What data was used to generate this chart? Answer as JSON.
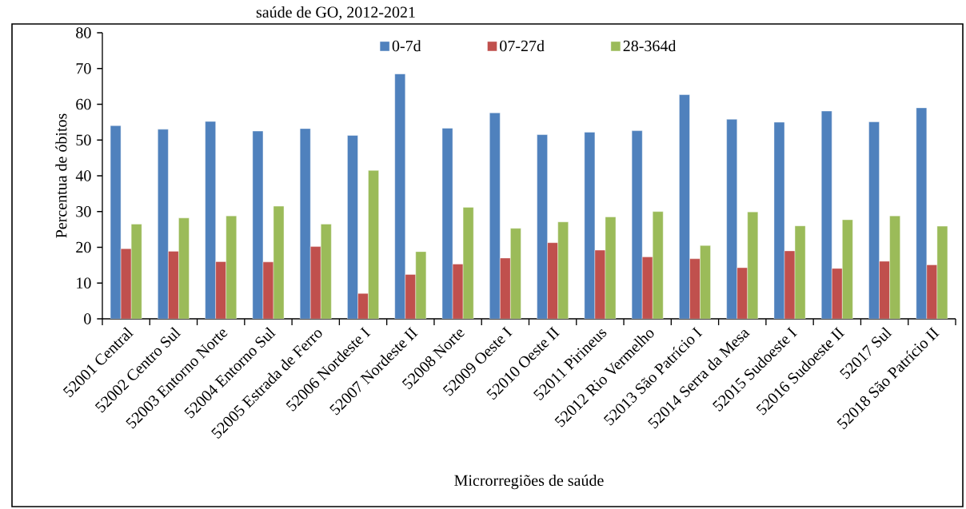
{
  "chart_data": {
    "type": "bar",
    "title": "saúde de GO, 2012-2021",
    "xlabel": "Microrregiões de saúde",
    "ylabel": "Percentua de óbitos",
    "categories": [
      "52001 Central",
      "52002 Centro Sul",
      "52003 Entorno Norte",
      "52004 Entorno Sul",
      "52005 Estrada de Ferro",
      "52006 Nordeste I",
      "52007 Nordeste II",
      "52008 Norte",
      "52009 Oeste I",
      "52010 Oeste II",
      "52011 Pirineus",
      "52012 Rio Vermelho",
      "52013 São Patrício I",
      "52014 Serra da Mesa",
      "52015 Sudoeste I",
      "52016 Sudoeste II",
      "52017 Sul",
      "52018 São Patrício II"
    ],
    "series": [
      {
        "name": "0-7d",
        "color": "#4f81bd",
        "values": [
          54.0,
          53.0,
          55.2,
          52.5,
          53.2,
          51.3,
          68.5,
          53.3,
          57.6,
          51.5,
          52.2,
          52.6,
          62.7,
          55.8,
          55.0,
          58.1,
          55.1,
          59.0
        ]
      },
      {
        "name": "07-27d",
        "color": "#c0504d",
        "values": [
          19.6,
          18.9,
          16.0,
          15.9,
          20.2,
          7.1,
          12.4,
          15.3,
          17.0,
          21.3,
          19.2,
          17.3,
          16.8,
          14.3,
          19.0,
          14.1,
          16.1,
          15.1
        ]
      },
      {
        "name": "28-364d",
        "color": "#9bbb59",
        "values": [
          26.5,
          28.2,
          28.8,
          31.5,
          26.5,
          41.5,
          18.8,
          31.2,
          25.3,
          27.1,
          28.5,
          30.0,
          20.5,
          29.9,
          26.0,
          27.7,
          28.8,
          25.9
        ]
      }
    ],
    "ylim": [
      0,
      80
    ],
    "yticks": [
      0,
      10,
      20,
      30,
      40,
      50,
      60,
      70,
      80
    ],
    "legend": "top",
    "grid": false
  }
}
